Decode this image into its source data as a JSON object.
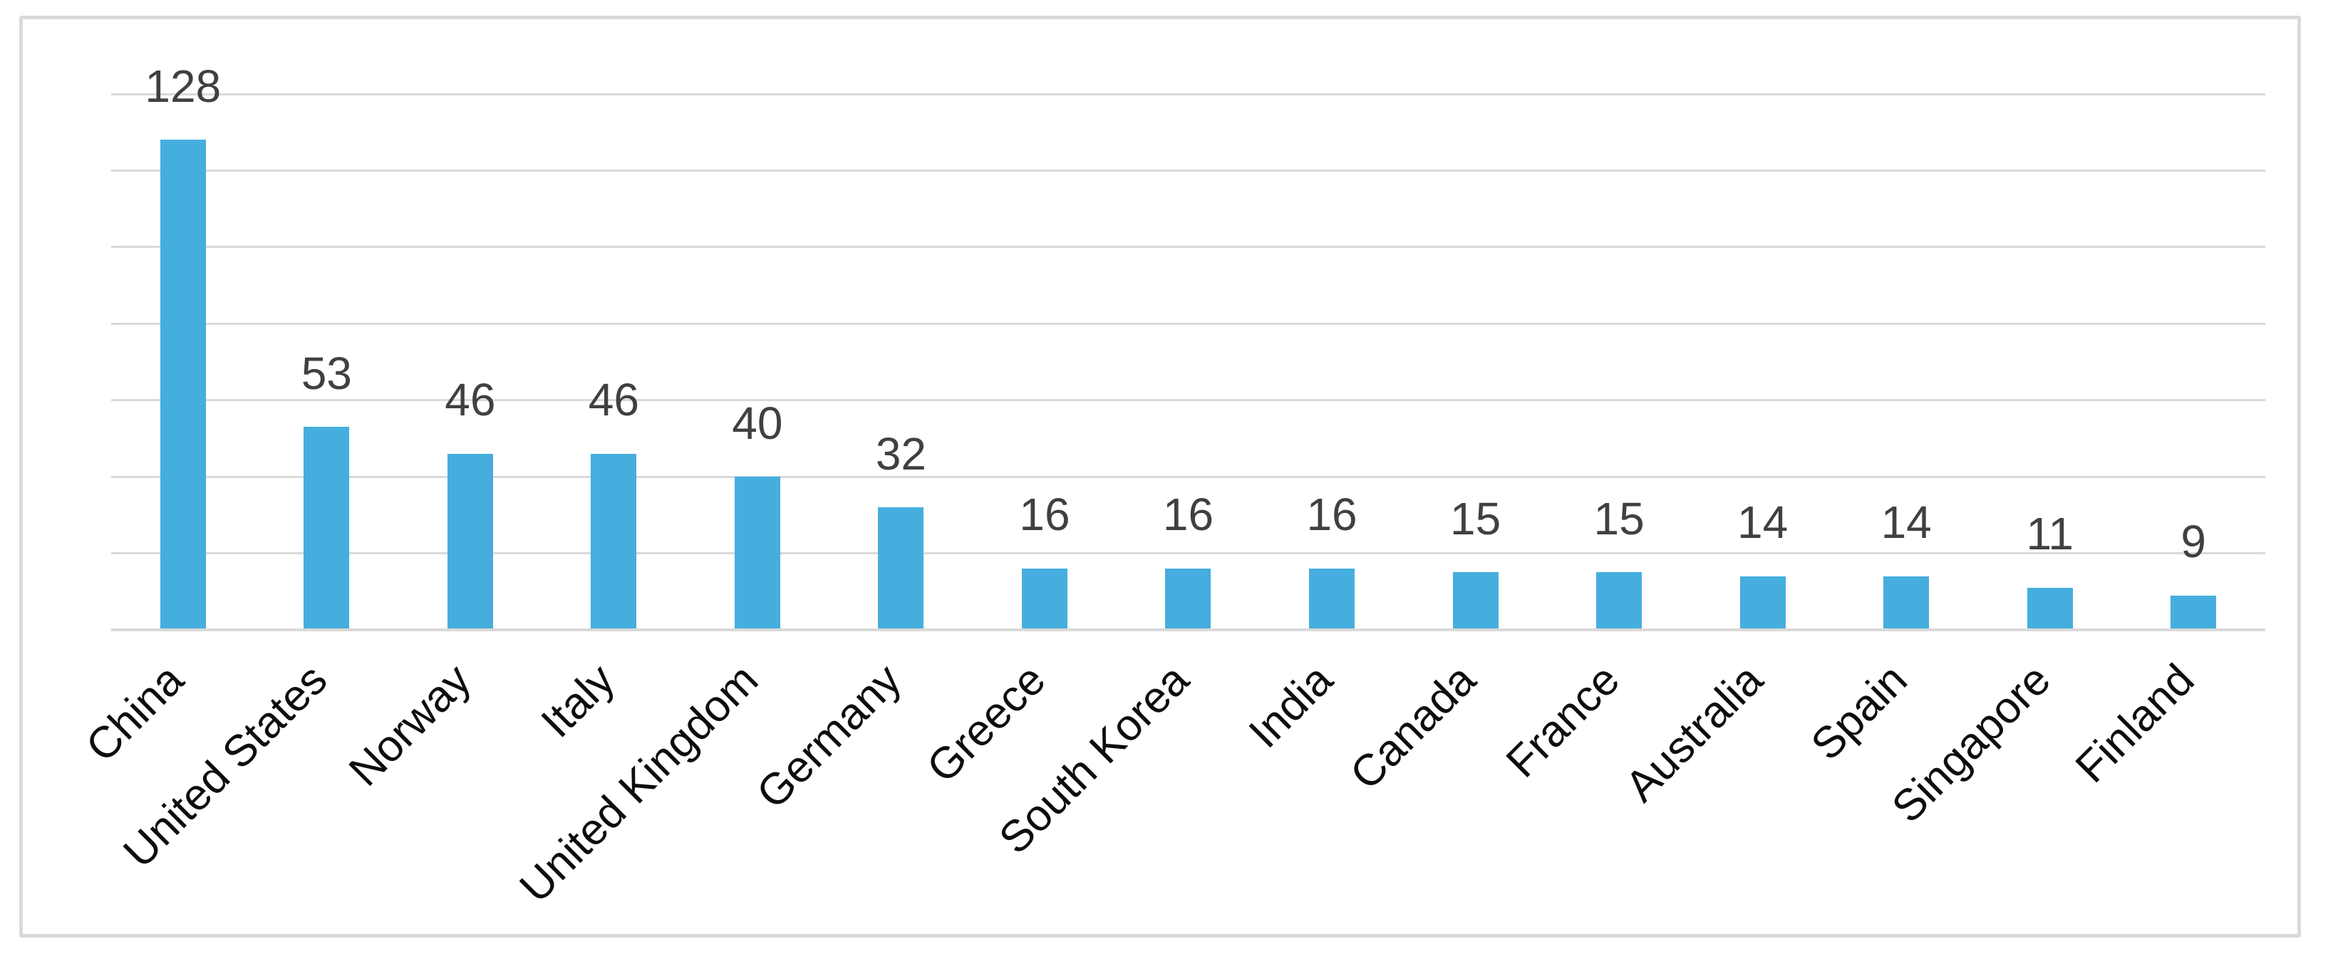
{
  "chart_data": {
    "type": "bar",
    "title": "",
    "xlabel": "",
    "ylabel": "",
    "categories": [
      "China",
      "United States",
      "Norway",
      "Italy",
      "United Kingdom",
      "Germany",
      "Greece",
      "South Korea",
      "India",
      "Canada",
      "France",
      "Australia",
      "Spain",
      "Singapore",
      "Finland"
    ],
    "values": [
      128,
      53,
      46,
      46,
      40,
      32,
      16,
      16,
      16,
      15,
      15,
      14,
      14,
      11,
      9
    ],
    "ylim": [
      0,
      140
    ],
    "gridline_interval": 20,
    "grid": true,
    "legend": false,
    "data_labels": true,
    "y_axis_labels_visible": false,
    "category_label_rotation_deg": 45,
    "colors": {
      "bar": "#45AEDE",
      "gridline": "#D9D9D9",
      "axis_line": "#D9D9D9",
      "frame_border": "#D9D9D9",
      "value_label": "#404040",
      "category_label": "#0D0D0D",
      "background": "#FFFFFF"
    }
  }
}
